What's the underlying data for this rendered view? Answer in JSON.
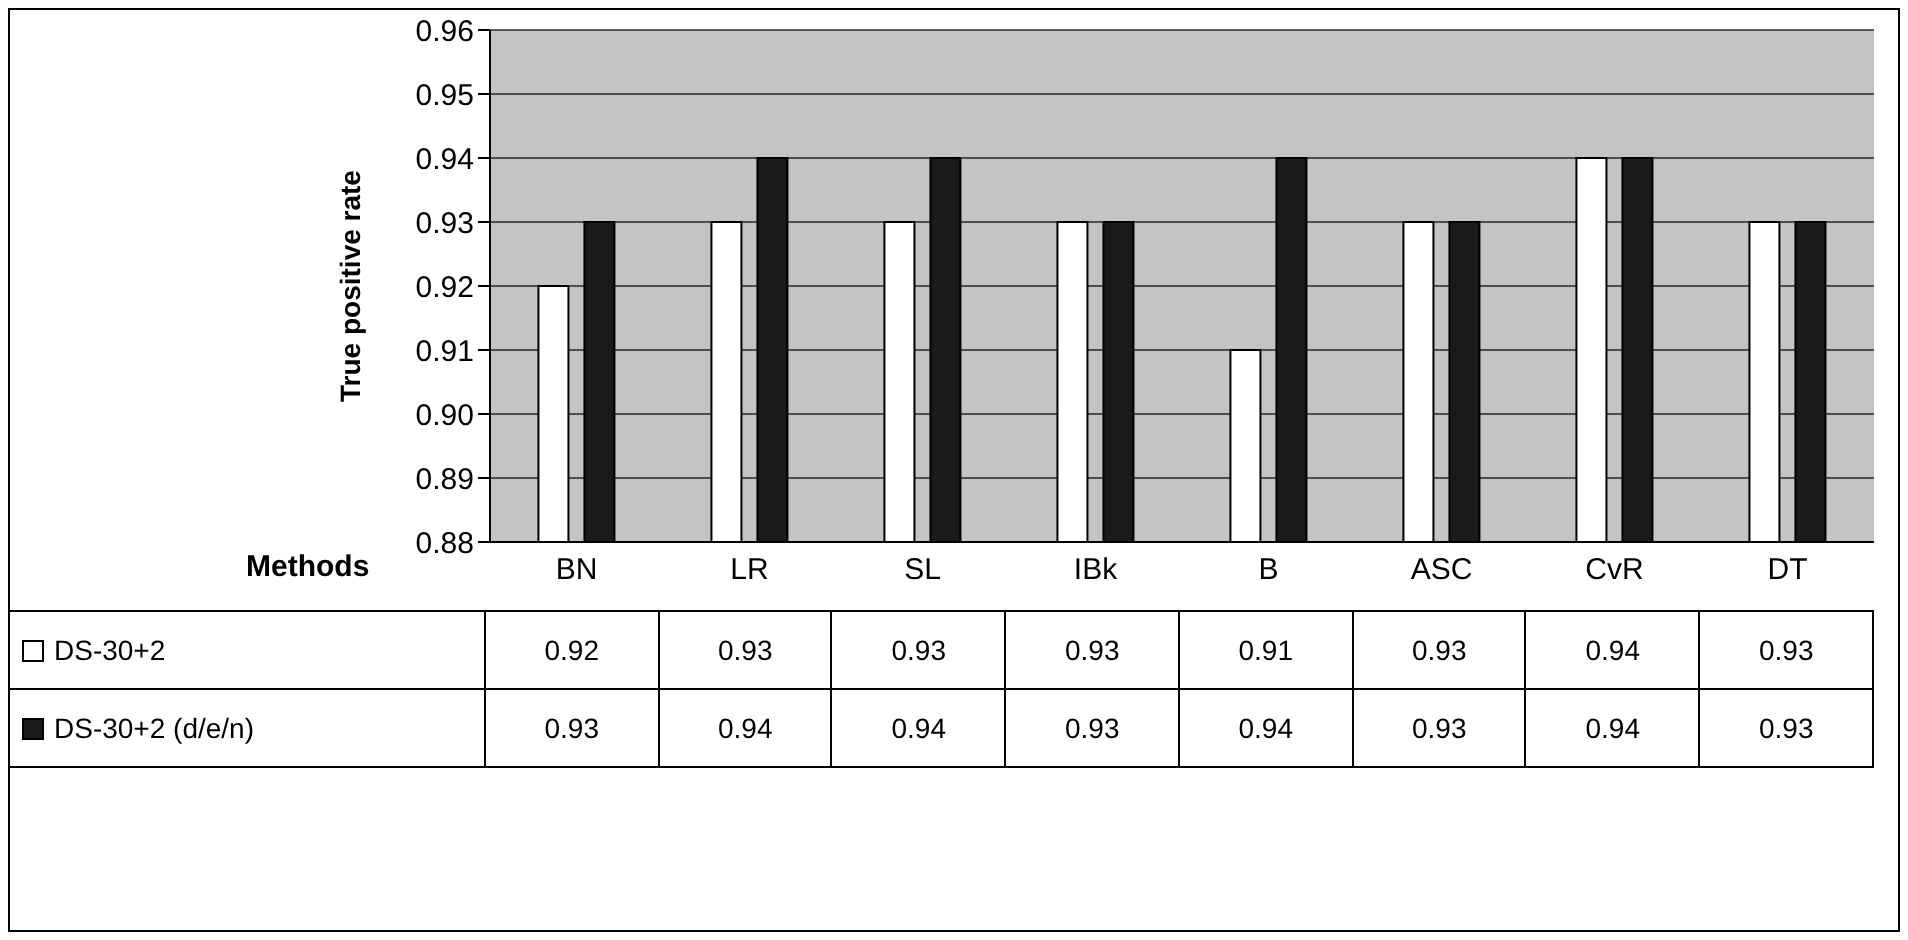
{
  "chart_data": {
    "type": "bar",
    "ylabel": "True positive rate",
    "xlabel": "Methods",
    "categories": [
      "BN",
      "LR",
      "SL",
      "IBk",
      "B",
      "ASC",
      "CvR",
      "DT"
    ],
    "series": [
      {
        "name": "DS-30+2",
        "color": "#ffffff",
        "values": [
          0.92,
          0.93,
          0.93,
          0.93,
          0.91,
          0.93,
          0.94,
          0.93
        ]
      },
      {
        "name": "DS-30+2 (d/e/n)",
        "color": "#1a1a1a",
        "values": [
          0.93,
          0.94,
          0.94,
          0.93,
          0.94,
          0.93,
          0.94,
          0.93
        ]
      }
    ],
    "ylim": [
      0.88,
      0.96
    ],
    "yticks": [
      0.88,
      0.89,
      {
        "value": 0.9,
        "label": "0.90"
      },
      0.91,
      0.92,
      0.93,
      0.94,
      0.95,
      0.96
    ],
    "grid": "y",
    "legend": "bottom",
    "data_labels": true
  }
}
